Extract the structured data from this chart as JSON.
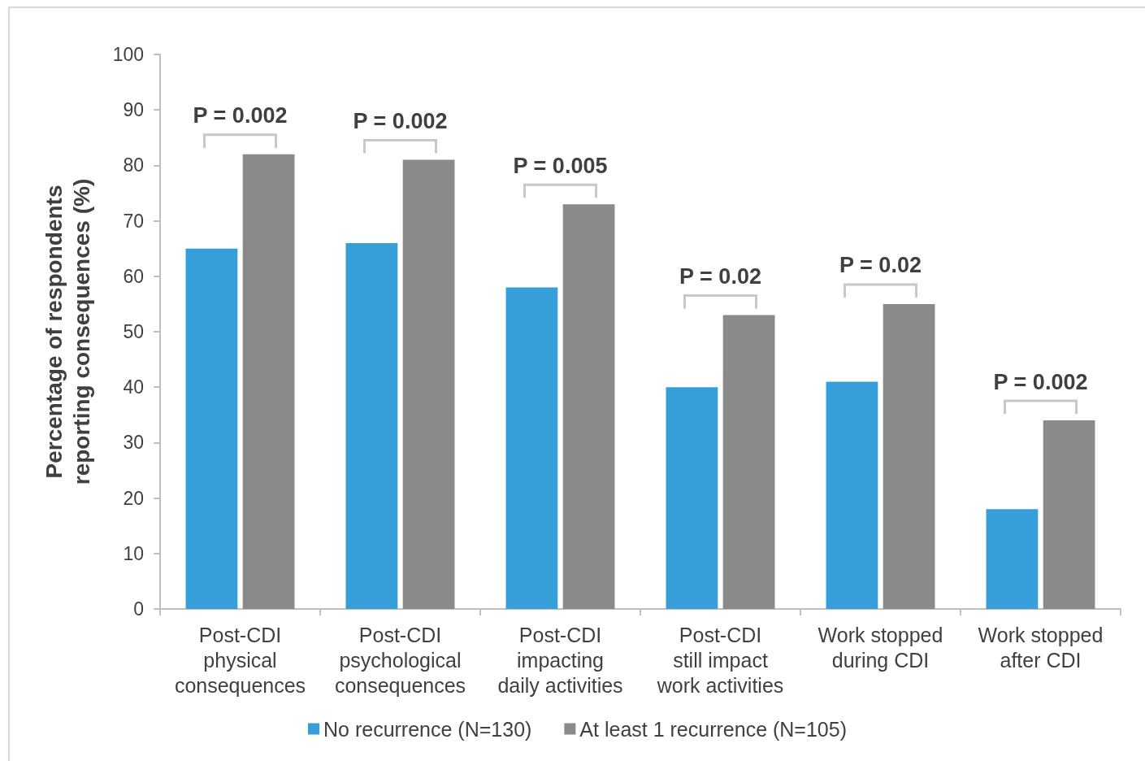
{
  "chart_data": {
    "type": "bar",
    "ylabel": "Percentage of respondents\nreporting consequences (%)",
    "categories": [
      "Post-CDI\nphysical\nconsequences",
      "Post-CDI\npsychological\nconsequences",
      "Post-CDI\nimpacting\ndaily activities",
      "Post-CDI\nstill impact\nwork activities",
      "Work stopped\nduring CDI",
      "Work stopped\nafter CDI"
    ],
    "series": [
      {
        "name": "No recurrence (N=130)",
        "color": "#369fd9",
        "values": [
          65,
          66,
          58,
          40,
          41,
          18
        ]
      },
      {
        "name": "At least 1 recurrence (N=105)",
        "color": "#8a8a8a",
        "values": [
          82,
          81,
          73,
          53,
          55,
          34
        ]
      }
    ],
    "ylim": [
      0,
      100
    ],
    "yticks": [
      0,
      10,
      20,
      30,
      40,
      50,
      60,
      70,
      80,
      90,
      100
    ],
    "grid": false,
    "legend": "bottom",
    "annotations": [
      "P = 0.002",
      "P = 0.002",
      "P = 0.005",
      "P = 0.02",
      "P = 0.02",
      "P = 0.002"
    ]
  }
}
